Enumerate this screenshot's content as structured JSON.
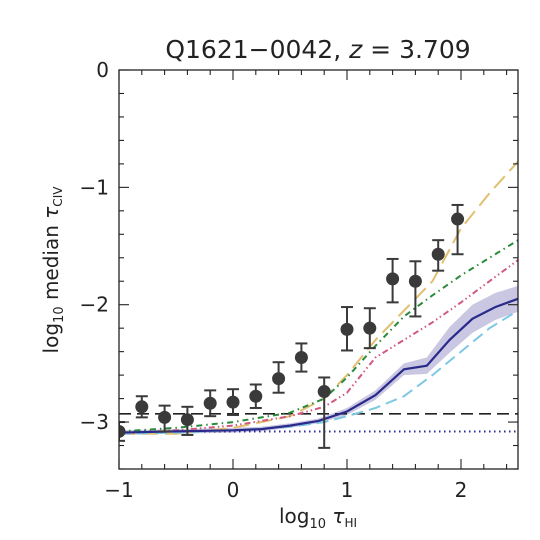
{
  "chart_data": {
    "type": "line",
    "title": "Q1621−0042, ",
    "title_z": "z",
    "title_eq": " = 3.709",
    "xlabel": {
      "pre": "log",
      "sub10": "10",
      "sym": " τ",
      "subscript": "HI"
    },
    "ylabel": {
      "pre": "log",
      "sub10": "10",
      "mid": " median ",
      "sym": "τ",
      "subscript": "CIV"
    },
    "xlim": [
      -1,
      2.5
    ],
    "ylim": [
      -3.4,
      0
    ],
    "x_ticks": [
      -1,
      0,
      1,
      2
    ],
    "x_tick_labels": [
      "−1",
      "0",
      "1",
      "2"
    ],
    "y_ticks": [
      -3,
      -2,
      -1,
      0
    ],
    "y_tick_labels": [
      "−3",
      "−2",
      "−1",
      "0"
    ],
    "grid": false,
    "points": {
      "x": [
        -1.0,
        -0.8,
        -0.6,
        -0.4,
        -0.2,
        0.0,
        0.2,
        0.4,
        0.6,
        0.8,
        1.0,
        1.2,
        1.4,
        1.6,
        1.8,
        1.97
      ],
      "y": [
        -3.08,
        -2.87,
        -2.96,
        -2.98,
        -2.84,
        -2.83,
        -2.78,
        -2.63,
        -2.45,
        -2.74,
        -2.21,
        -2.2,
        -1.78,
        -1.8,
        -1.57,
        -1.27
      ],
      "err_low": [
        0.08,
        0.09,
        0.12,
        0.13,
        0.11,
        0.11,
        0.1,
        0.12,
        0.12,
        0.48,
        0.18,
        0.17,
        0.2,
        0.3,
        0.14,
        0.3
      ],
      "err_high": [
        0.08,
        0.09,
        0.1,
        0.11,
        0.11,
        0.11,
        0.1,
        0.14,
        0.12,
        0.12,
        0.19,
        0.17,
        0.17,
        0.17,
        0.12,
        0.12
      ],
      "color": "#3a3a3a"
    },
    "series": [
      {
        "style": "long-dash",
        "color": "#e0c070",
        "x": [
          -1,
          -0.5,
          0,
          0.5,
          0.8,
          1.0,
          1.25,
          1.5,
          1.75,
          2.0,
          2.25,
          2.5
        ],
        "y": [
          -3.1,
          -3.1,
          -3.05,
          -2.95,
          -2.8,
          -2.6,
          -2.3,
          -2.05,
          -1.8,
          -1.35,
          -1.05,
          -0.78
        ]
      },
      {
        "style": "dash-dot",
        "color": "#2a8a3a",
        "x": [
          -1,
          -0.5,
          0,
          0.5,
          0.8,
          1.0,
          1.25,
          1.5,
          1.75,
          2.0,
          2.25,
          2.5
        ],
        "y": [
          -3.08,
          -3.05,
          -3.0,
          -2.92,
          -2.8,
          -2.62,
          -2.35,
          -2.1,
          -1.92,
          -1.75,
          -1.6,
          -1.45
        ]
      },
      {
        "style": "dash-dot-dot",
        "color": "#d05a80",
        "x": [
          -1,
          -0.5,
          0,
          0.5,
          0.8,
          1.0,
          1.25,
          1.5,
          1.75,
          2.0,
          2.25,
          2.5
        ],
        "y": [
          -3.1,
          -3.07,
          -3.03,
          -2.95,
          -2.87,
          -2.75,
          -2.45,
          -2.3,
          -2.15,
          -1.98,
          -1.8,
          -1.62
        ]
      },
      {
        "style": "dash",
        "color": "#7ec8e3",
        "x": [
          -1,
          -0.5,
          0,
          0.5,
          0.8,
          1.0,
          1.25,
          1.5,
          1.75,
          2.0,
          2.25,
          2.5
        ],
        "y": [
          -3.1,
          -3.09,
          -3.07,
          -3.04,
          -3.0,
          -2.95,
          -2.88,
          -2.78,
          -2.6,
          -2.4,
          -2.2,
          -2.05
        ]
      },
      {
        "style": "solid",
        "color": "#2a2a8a",
        "band_color": "#b8b4d8",
        "x": [
          -1,
          -0.5,
          0,
          0.25,
          0.5,
          0.75,
          1.0,
          1.25,
          1.5,
          1.7,
          1.9,
          2.1,
          2.3,
          2.5
        ],
        "y": [
          -3.09,
          -3.08,
          -3.07,
          -3.06,
          -3.03,
          -2.99,
          -2.91,
          -2.77,
          -2.55,
          -2.52,
          -2.3,
          -2.12,
          -2.02,
          -1.95
        ],
        "band_low": [
          -3.11,
          -3.1,
          -3.09,
          -3.08,
          -3.05,
          -3.01,
          -2.94,
          -2.81,
          -2.6,
          -2.59,
          -2.41,
          -2.24,
          -2.13,
          -2.06
        ],
        "band_high": [
          -3.07,
          -3.06,
          -3.05,
          -3.04,
          -3.01,
          -2.97,
          -2.88,
          -2.73,
          -2.5,
          -2.45,
          -2.19,
          -2.0,
          -1.9,
          -1.84
        ]
      }
    ],
    "hlines": [
      {
        "y": -2.93,
        "style": "dash",
        "color": "#222222"
      },
      {
        "y": -3.08,
        "style": "dot",
        "color": "#2a2a9a"
      }
    ]
  }
}
